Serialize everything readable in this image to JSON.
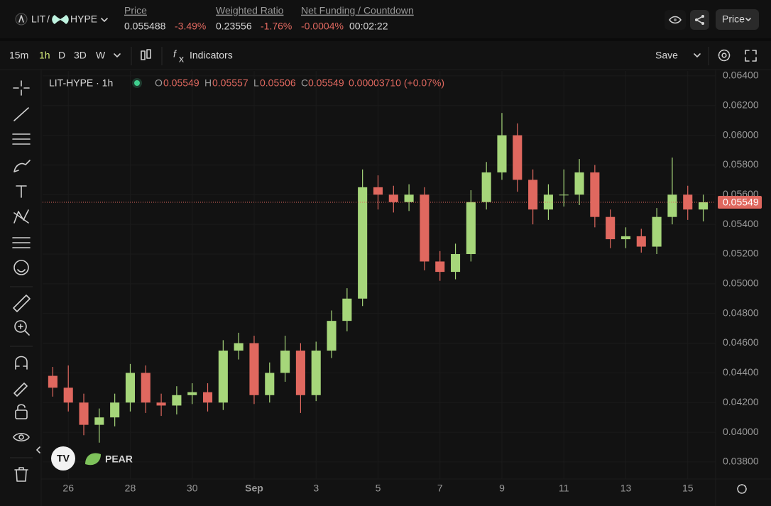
{
  "header": {
    "pair": {
      "base": "LIT",
      "separator": "/",
      "quote": "HYPE"
    },
    "stats": [
      {
        "label": "Price",
        "value": "0.055488",
        "change": "-3.49%"
      },
      {
        "label": "Weighted Ratio",
        "value": "0.23556",
        "change": "-1.76%"
      },
      {
        "label": "Net Funding / Countdown",
        "value": "-0.0004%",
        "change": "00:02:22"
      }
    ],
    "price_button": "Price"
  },
  "toolbar": {
    "intervals": [
      "15m",
      "1h",
      "D",
      "3D",
      "W"
    ],
    "indicators": "Indicators",
    "save": "Save"
  },
  "legend": {
    "symbol": "LIT-HYPE · 1h",
    "ohlc": [
      {
        "key": "O",
        "value": "0.05549"
      },
      {
        "key": "H",
        "value": "0.05557"
      },
      {
        "key": "L",
        "value": "0.05506"
      },
      {
        "key": "C",
        "value": "0.05549"
      }
    ],
    "change": "0.00003710 (+0.07%)"
  },
  "brand": "PEAR",
  "chart_data": {
    "type": "candlestick",
    "open": [
      0.0438,
      0.043,
      0.042,
      0.0405,
      0.041,
      0.042,
      0.044,
      0.042,
      0.0418,
      0.0425,
      0.0427,
      0.042,
      0.0455,
      0.046,
      0.0425,
      0.044,
      0.0455,
      0.0425,
      0.0455,
      0.0475,
      0.049,
      0.0565,
      0.056,
      0.0555,
      0.056,
      0.0515,
      0.0508,
      0.052,
      0.0555,
      0.0575,
      0.06,
      0.057,
      0.055,
      0.056,
      0.056,
      0.0575,
      0.0545,
      0.053,
      0.0532,
      0.0525,
      0.0545,
      0.056,
      0.055
    ],
    "high": [
      0.0444,
      0.0445,
      0.0426,
      0.0416,
      0.0426,
      0.0446,
      0.0445,
      0.0426,
      0.0431,
      0.0433,
      0.0433,
      0.0462,
      0.0467,
      0.0465,
      0.0447,
      0.0465,
      0.046,
      0.0461,
      0.0482,
      0.0497,
      0.0577,
      0.0573,
      0.0566,
      0.0567,
      0.0565,
      0.0522,
      0.0527,
      0.0563,
      0.0582,
      0.0615,
      0.0608,
      0.0577,
      0.0567,
      0.0577,
      0.0584,
      0.058,
      0.055,
      0.0538,
      0.0537,
      0.0551,
      0.0585,
      0.0566,
      0.056
    ],
    "low": [
      0.0424,
      0.0414,
      0.0398,
      0.0393,
      0.0404,
      0.0414,
      0.0413,
      0.0411,
      0.0412,
      0.0419,
      0.0414,
      0.0415,
      0.0449,
      0.0419,
      0.042,
      0.0434,
      0.0413,
      0.0421,
      0.045,
      0.0468,
      0.0485,
      0.055,
      0.0548,
      0.0549,
      0.0509,
      0.0502,
      0.0503,
      0.0515,
      0.055,
      0.057,
      0.0562,
      0.054,
      0.0543,
      0.0552,
      0.0553,
      0.0538,
      0.0524,
      0.0524,
      0.0521,
      0.052,
      0.054,
      0.0543,
      0.0542
    ],
    "close": [
      0.043,
      0.042,
      0.0405,
      0.041,
      0.042,
      0.044,
      0.042,
      0.0418,
      0.0425,
      0.0427,
      0.042,
      0.0455,
      0.046,
      0.0425,
      0.044,
      0.0455,
      0.0425,
      0.0455,
      0.0475,
      0.049,
      0.0565,
      0.056,
      0.0555,
      0.056,
      0.0515,
      0.0508,
      0.052,
      0.0555,
      0.0575,
      0.06,
      0.057,
      0.055,
      0.056,
      0.056,
      0.0575,
      0.0545,
      0.053,
      0.0532,
      0.0525,
      0.0545,
      0.056,
      0.055,
      0.05549
    ],
    "up_color": "#a6d67a",
    "down_color": "#e0685f",
    "ylim": [
      0.03685,
      0.06433
    ],
    "yticks": [
      {
        "value": 0.064,
        "label": "0.06400"
      },
      {
        "value": 0.062,
        "label": "0.06200"
      },
      {
        "value": 0.06,
        "label": "0.06000"
      },
      {
        "value": 0.058,
        "label": "0.05800"
      },
      {
        "value": 0.056,
        "label": "0.05600"
      },
      {
        "value": 0.054,
        "label": "0.05400"
      },
      {
        "value": 0.052,
        "label": "0.05200"
      },
      {
        "value": 0.05,
        "label": "0.05000"
      },
      {
        "value": 0.048,
        "label": "0.04800"
      },
      {
        "value": 0.046,
        "label": "0.04600"
      },
      {
        "value": 0.044,
        "label": "0.04400"
      },
      {
        "value": 0.042,
        "label": "0.04200"
      },
      {
        "value": 0.04,
        "label": "0.04000"
      },
      {
        "value": 0.038,
        "label": "0.03800"
      }
    ],
    "xlim": [
      -0.66,
      42.8
    ],
    "xticks": [
      {
        "value": 1,
        "label": "26"
      },
      {
        "value": 5,
        "label": "28"
      },
      {
        "value": 9,
        "label": "30"
      },
      {
        "value": 13,
        "label": "Sep"
      },
      {
        "value": 17,
        "label": "3"
      },
      {
        "value": 21,
        "label": "5"
      },
      {
        "value": 25,
        "label": "7"
      },
      {
        "value": 29,
        "label": "9"
      },
      {
        "value": 33,
        "label": "11"
      },
      {
        "value": 37,
        "label": "13"
      },
      {
        "value": 41,
        "label": "15"
      }
    ],
    "last_price": {
      "value": 0.05549,
      "label": "0.05549"
    },
    "grid": true
  }
}
